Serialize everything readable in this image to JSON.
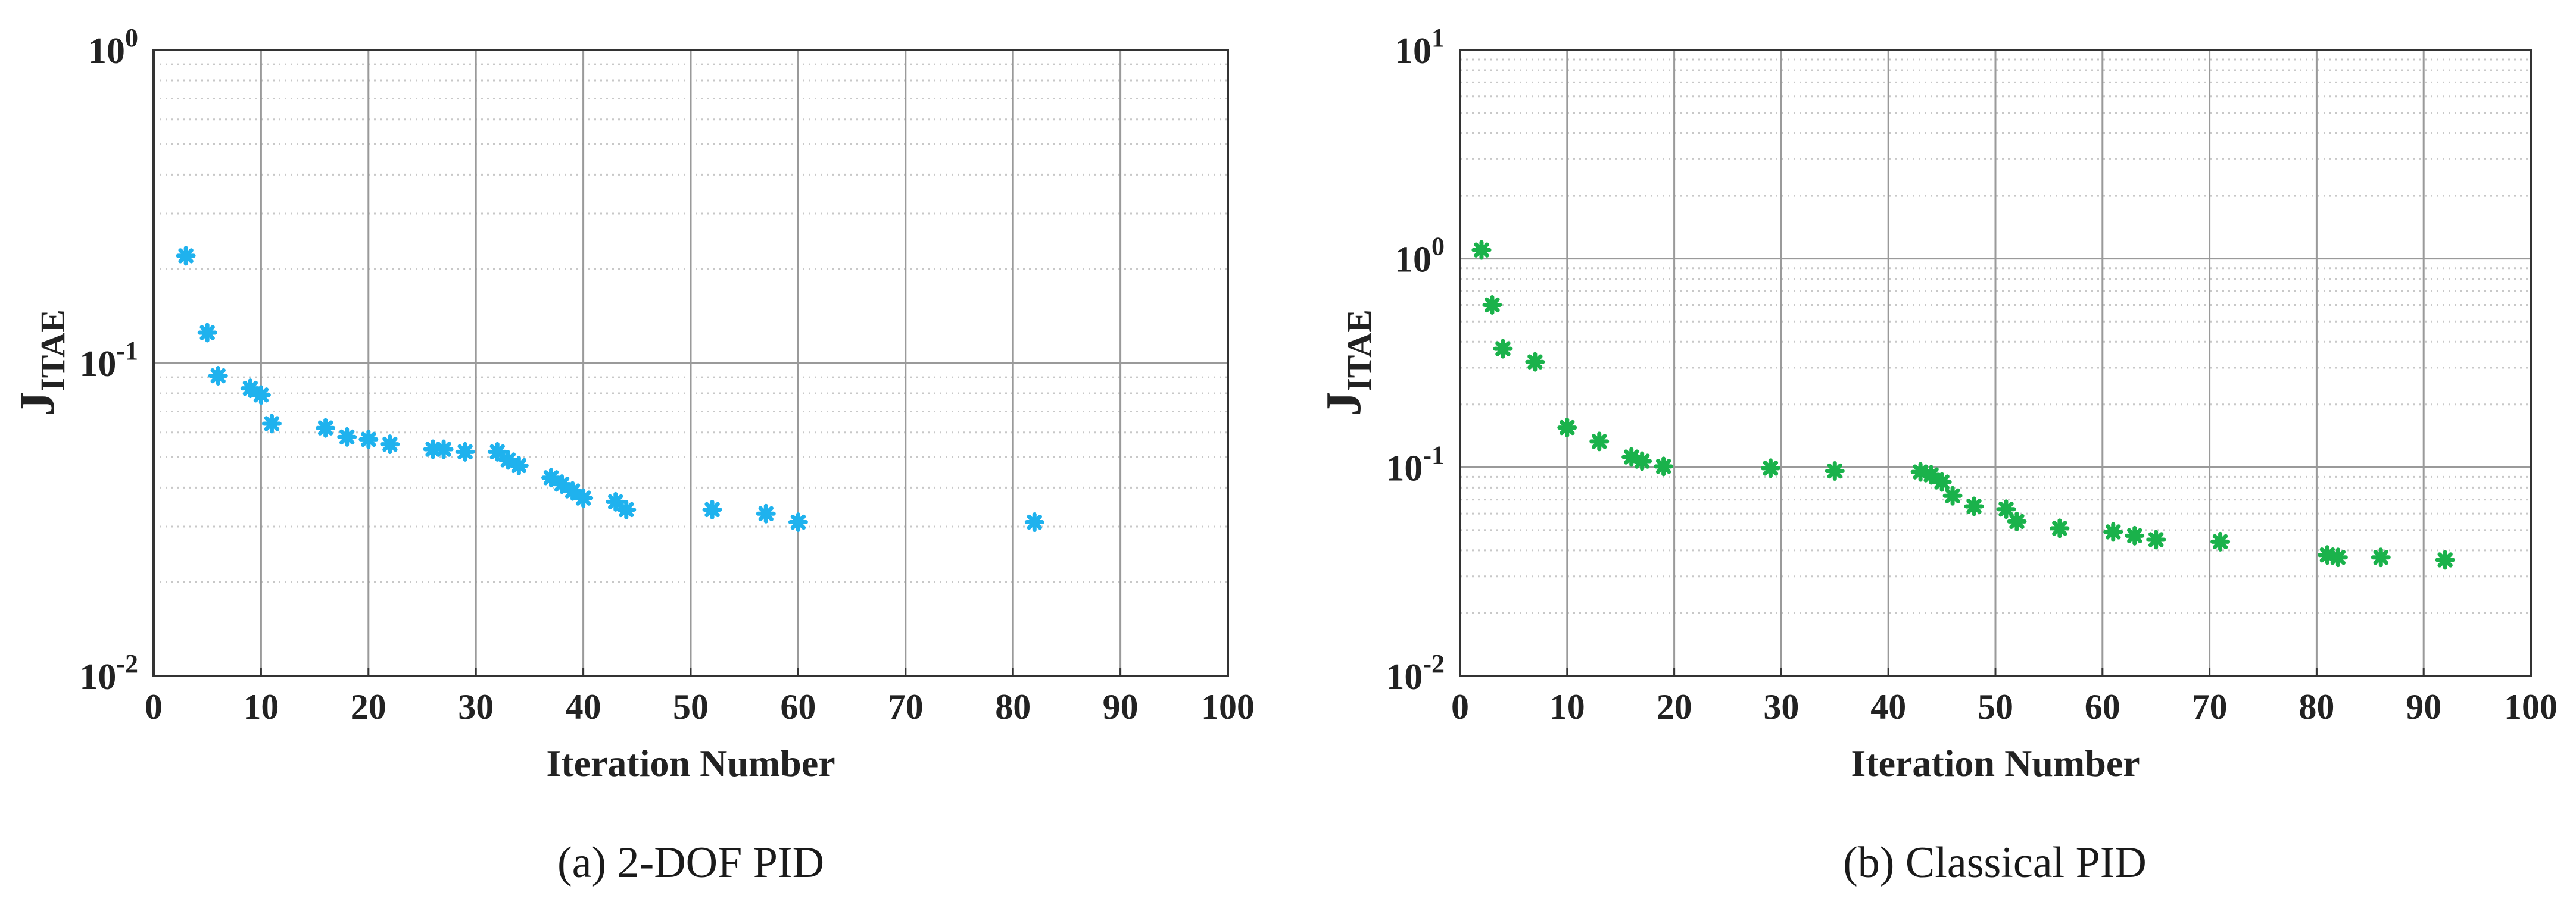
{
  "chart_data": [
    {
      "type": "scatter",
      "panel": "a",
      "caption": "(a) 2-DOF PID",
      "xlabel": "Iteration Number",
      "ylabel": "J",
      "ylabel_subscript": "ITAE",
      "xlim": [
        0,
        100
      ],
      "ylim": [
        0.01,
        1
      ],
      "y_scale": "log",
      "x_ticks": [
        0,
        10,
        20,
        30,
        40,
        50,
        60,
        70,
        80,
        90,
        100
      ],
      "y_ticks": [
        {
          "base": "10",
          "exp": "-2"
        },
        {
          "base": "10",
          "exp": "-1"
        },
        {
          "base": "10",
          "exp": "0"
        }
      ],
      "grid": true,
      "marker": "asterisk",
      "color": "#1fb2ee",
      "points": [
        [
          3,
          0.22
        ],
        [
          5,
          0.125
        ],
        [
          6,
          0.091
        ],
        [
          9,
          0.083
        ],
        [
          10,
          0.079
        ],
        [
          11,
          0.064
        ],
        [
          16,
          0.062
        ],
        [
          18,
          0.058
        ],
        [
          20,
          0.057
        ],
        [
          22,
          0.055
        ],
        [
          26,
          0.053
        ],
        [
          27,
          0.053
        ],
        [
          29,
          0.052
        ],
        [
          32,
          0.052
        ],
        [
          33,
          0.049
        ],
        [
          34,
          0.047
        ],
        [
          37,
          0.043
        ],
        [
          38,
          0.041
        ],
        [
          39,
          0.039
        ],
        [
          40,
          0.037
        ],
        [
          43,
          0.036
        ],
        [
          44,
          0.034
        ],
        [
          52,
          0.034
        ],
        [
          57,
          0.033
        ],
        [
          60,
          0.031
        ],
        [
          82,
          0.031
        ]
      ]
    },
    {
      "type": "scatter",
      "panel": "b",
      "caption": "(b) Classical PID",
      "xlabel": "Iteration Number",
      "ylabel": "J",
      "ylabel_subscript": "ITAE",
      "xlim": [
        0,
        100
      ],
      "ylim": [
        0.01,
        10
      ],
      "y_scale": "log",
      "x_ticks": [
        0,
        10,
        20,
        30,
        40,
        50,
        60,
        70,
        80,
        90,
        100
      ],
      "y_ticks": [
        {
          "base": "10",
          "exp": "-2"
        },
        {
          "base": "10",
          "exp": "-1"
        },
        {
          "base": "10",
          "exp": "0"
        },
        {
          "base": "10",
          "exp": "1"
        }
      ],
      "grid": true,
      "marker": "asterisk",
      "color": "#1ab24b",
      "points": [
        [
          2,
          1.1
        ],
        [
          3,
          0.6
        ],
        [
          4,
          0.37
        ],
        [
          7,
          0.32
        ],
        [
          10,
          0.155
        ],
        [
          13,
          0.133
        ],
        [
          16,
          0.112
        ],
        [
          17,
          0.107
        ],
        [
          19,
          0.101
        ],
        [
          29,
          0.099
        ],
        [
          35,
          0.096
        ],
        [
          43,
          0.095
        ],
        [
          44,
          0.092
        ],
        [
          45,
          0.085
        ],
        [
          46,
          0.073
        ],
        [
          48,
          0.065
        ],
        [
          51,
          0.063
        ],
        [
          52,
          0.055
        ],
        [
          56,
          0.051
        ],
        [
          61,
          0.049
        ],
        [
          63,
          0.047
        ],
        [
          65,
          0.045
        ],
        [
          71,
          0.044
        ],
        [
          81,
          0.038
        ],
        [
          82,
          0.037
        ],
        [
          86,
          0.037
        ],
        [
          92,
          0.036
        ]
      ]
    }
  ]
}
